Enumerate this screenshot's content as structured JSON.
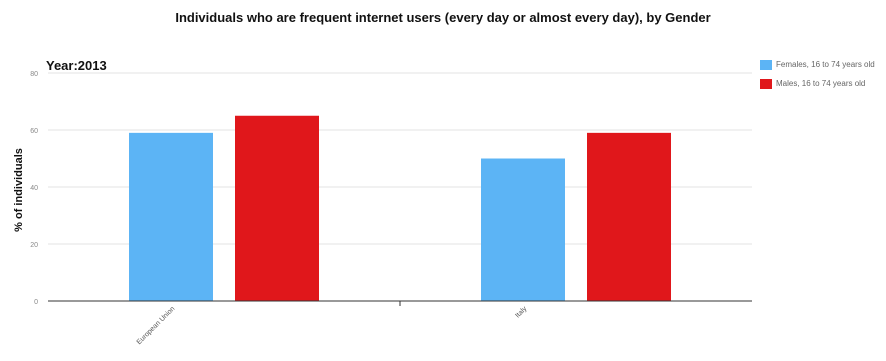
{
  "header": {
    "title": "Individuals who are frequent internet users (every day or almost every day), by Gender",
    "subtitle": "Year:2013"
  },
  "chart_data": {
    "type": "bar",
    "title": "Individuals who are frequent internet users (every day or almost every day), by Gender",
    "subtitle": "Year:2013",
    "xlabel": "",
    "ylabel": "% of individuals",
    "categories": [
      "European Union",
      "Italy"
    ],
    "series": [
      {
        "name": "Females, 16 to 74 years old",
        "color": "#5cb4f5",
        "values": [
          59,
          50
        ]
      },
      {
        "name": "Males, 16 to 74 years old",
        "color": "#e0171b",
        "values": [
          65,
          59
        ]
      }
    ],
    "ylim": [
      0,
      80
    ],
    "yticks": [
      0,
      20,
      40,
      60,
      80
    ],
    "grid": true,
    "legend_position": "right"
  },
  "legend": {
    "items": [
      {
        "label": "Females, 16 to 74 years old",
        "color": "#5cb4f5"
      },
      {
        "label": "Males, 16 to 74 years old",
        "color": "#e0171b"
      }
    ]
  }
}
